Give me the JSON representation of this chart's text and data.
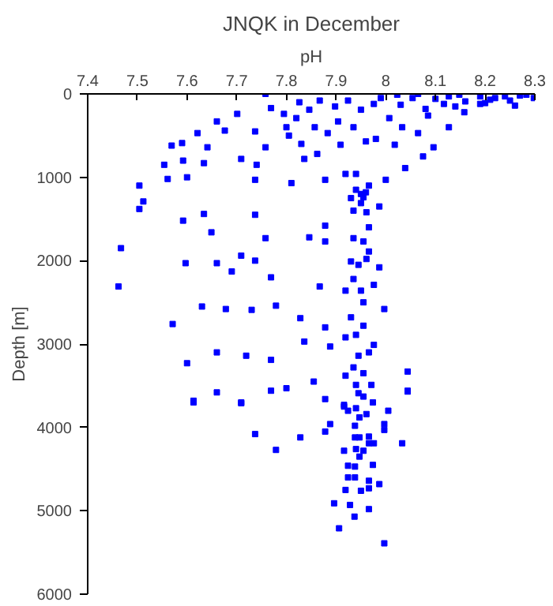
{
  "chart_data": {
    "type": "scatter",
    "title": "JNQK in December",
    "xlabel": "pH",
    "ylabel": "Depth [m]",
    "xlim": [
      7.4,
      8.3
    ],
    "xticks": [
      7.4,
      7.5,
      7.6,
      7.7,
      7.8,
      7.9,
      8,
      8.1,
      8.2,
      8.3
    ],
    "ylim": [
      6000,
      0
    ],
    "yticks": [
      0,
      1000,
      2000,
      3000,
      4000,
      5000,
      6000
    ],
    "grid": false,
    "marker": "square",
    "series": [
      {
        "color": "#0000ff",
        "x": [
          7.758,
          7.504,
          7.512,
          7.554,
          7.561,
          7.569,
          7.59,
          7.592,
          7.6,
          7.621,
          7.634,
          7.641,
          7.66,
          7.676,
          7.701,
          7.709,
          7.737,
          7.74,
          7.737,
          7.758,
          7.769,
          7.795,
          7.8,
          7.805,
          7.81,
          7.826,
          7.82,
          7.83,
          7.836,
          7.846,
          7.857,
          7.862,
          7.867,
          7.878,
          7.883,
          7.898,
          7.904,
          7.909,
          7.919,
          7.924,
          7.935,
          7.94,
          7.95,
          7.955,
          7.96,
          7.966,
          7.976,
          7.98,
          7.99,
          8.0,
          8.007,
          8.018,
          8.023,
          8.033,
          8.039,
          8.054,
          8.065,
          8.075,
          8.085,
          8.096,
          8.117,
          8.127,
          8.148,
          8.158,
          8.19,
          8.22,
          8.25,
          8.283,
          8.298,
          8.065,
          8.127,
          8.19,
          8.24,
          8.1,
          8.16,
          8.21,
          8.27,
          8.08,
          8.14,
          8.2,
          8.26,
          8.03,
          7.467,
          7.462,
          7.504,
          7.592,
          7.649,
          7.634,
          7.597,
          7.66,
          7.69,
          7.709,
          7.737,
          7.737,
          7.769,
          7.758,
          7.63,
          7.678,
          7.73,
          7.779,
          7.571,
          7.828,
          7.836,
          7.66,
          7.719,
          7.769,
          7.6,
          7.855,
          7.8,
          7.66,
          7.769,
          7.613,
          7.709,
          8.044,
          8.044,
          7.997,
          7.878,
          7.878,
          7.846,
          7.867,
          7.878,
          7.888,
          7.878,
          7.987,
          7.987,
          7.976,
          7.976,
          7.95,
          7.961,
          7.935,
          7.966,
          7.935,
          7.955,
          7.966,
          7.93,
          7.945,
          7.961,
          7.935,
          7.95,
          7.919,
          7.955,
          7.93,
          7.955,
          7.94,
          7.919,
          7.966,
          7.945,
          7.935,
          7.955,
          7.919,
          7.971,
          7.94,
          7.955,
          7.916,
          7.94,
          7.95,
          7.93,
          7.96,
          7.613,
          7.709,
          7.737,
          7.828,
          7.779,
          7.878,
          7.888,
          8.033,
          7.997,
          7.997,
          8.005,
          8.044,
          7.987,
          7.896,
          7.906,
          7.966,
          7.997,
          7.937,
          7.928,
          7.919,
          7.95,
          7.966,
          7.924,
          7.938,
          7.924,
          7.974,
          7.938,
          7.966,
          7.916,
          7.94,
          7.947,
          7.955,
          7.938,
          7.947,
          7.966,
          7.976,
          7.966,
          7.938,
          7.947,
          7.961,
          7.924,
          7.94,
          7.974,
          7.916,
          7.945
        ],
        "values": [
          0,
          1100,
          1290,
          850,
          1020,
          620,
          590,
          800,
          1000,
          470,
          830,
          640,
          330,
          440,
          240,
          780,
          450,
          850,
          1030,
          640,
          170,
          240,
          400,
          500,
          1070,
          100,
          290,
          600,
          780,
          190,
          400,
          720,
          80,
          1030,
          470,
          150,
          330,
          610,
          960,
          80,
          400,
          960,
          190,
          1240,
          570,
          1100,
          120,
          540,
          50,
          1030,
          290,
          610,
          10,
          400,
          890,
          50,
          470,
          750,
          260,
          640,
          120,
          400,
          10,
          220,
          120,
          50,
          80,
          10,
          50,
          0,
          30,
          30,
          30,
          60,
          90,
          70,
          20,
          180,
          150,
          110,
          140,
          130,
          1850,
          2310,
          1380,
          1520,
          1660,
          1440,
          2030,
          2030,
          2130,
          1940,
          1450,
          2000,
          2200,
          1730,
          2550,
          2580,
          2590,
          2540,
          2760,
          2690,
          2970,
          3100,
          3140,
          3190,
          3230,
          3450,
          3530,
          3580,
          3560,
          3700,
          3710,
          3330,
          3560,
          2580,
          1580,
          1770,
          1720,
          2310,
          2800,
          3030,
          3660,
          1350,
          2080,
          2290,
          3010,
          1310,
          1420,
          1400,
          1600,
          1730,
          1770,
          1890,
          2010,
          2050,
          1980,
          2220,
          2360,
          2360,
          2500,
          2680,
          2780,
          2890,
          2920,
          3100,
          3140,
          3280,
          3350,
          3380,
          3490,
          3490,
          3630,
          3730,
          1150,
          1200,
          1250,
          1180,
          3680,
          3700,
          4080,
          4120,
          4270,
          4050,
          3960,
          4190,
          3960,
          4030,
          3800,
          3570,
          4680,
          4910,
          5210,
          4980,
          5390,
          5070,
          4930,
          4750,
          4760,
          4730,
          4600,
          4600,
          4460,
          4450,
          4470,
          4640,
          4280,
          4260,
          4350,
          4280,
          4120,
          4120,
          4190,
          4190,
          4110,
          3980,
          3880,
          3840,
          3800,
          3770,
          3700,
          3750,
          3590
        ]
      }
    ]
  }
}
